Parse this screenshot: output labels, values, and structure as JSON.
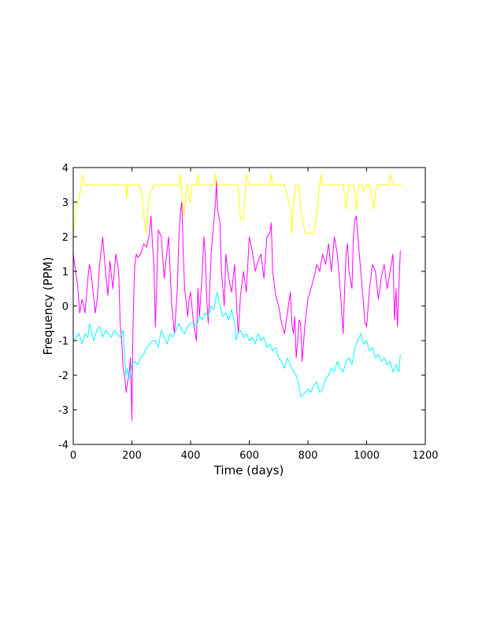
{
  "chart_data": {
    "type": "line",
    "title": "",
    "xlabel": "Time (days)",
    "ylabel": "Frequency (PPM)",
    "xlim": [
      0,
      1200
    ],
    "ylim": [
      -4,
      4
    ],
    "xticks": [
      0,
      200,
      400,
      600,
      800,
      1000,
      1200
    ],
    "yticks": [
      -4,
      -3,
      -2,
      -1,
      0,
      1,
      2,
      3,
      4
    ],
    "grid": false,
    "legend": "none",
    "series": [
      {
        "color": "#ffff00",
        "x": [
          0,
          10,
          22,
          32,
          38,
          45,
          60,
          100,
          180,
          182,
          186,
          190,
          195,
          210,
          225,
          235,
          242,
          248,
          252,
          260,
          275,
          300,
          330,
          350,
          360,
          365,
          368,
          372,
          378,
          382,
          386,
          390,
          395,
          400,
          405,
          410,
          420,
          425,
          430,
          440,
          460,
          480,
          485,
          490,
          495,
          500,
          510,
          520,
          530,
          540,
          550,
          560,
          565,
          570,
          580,
          585,
          590,
          600,
          610,
          620,
          630,
          640,
          660,
          670,
          675,
          680,
          685,
          690,
          700,
          720,
          730,
          740,
          745,
          750,
          760,
          770,
          775,
          780,
          790,
          800,
          810,
          820,
          830,
          840,
          845,
          850,
          860,
          870,
          880,
          900,
          920,
          925,
          930,
          940,
          950,
          955,
          960,
          965,
          970,
          975,
          980,
          985,
          990,
          1000,
          1010,
          1020,
          1025,
          1030,
          1035,
          1040,
          1060,
          1075,
          1080,
          1090,
          1120
        ],
        "y": [
          2.1,
          2.8,
          3.2,
          3.8,
          3.5,
          3.5,
          3.5,
          3.5,
          3.5,
          3.1,
          3.5,
          3.5,
          3.5,
          3.5,
          3.5,
          3.2,
          2.5,
          2.1,
          2.6,
          3.2,
          3.5,
          3.5,
          3.5,
          3.5,
          3.5,
          3.8,
          3.5,
          3.0,
          2.6,
          3.0,
          3.5,
          3.5,
          3.1,
          3.0,
          3.5,
          3.5,
          3.5,
          3.8,
          3.5,
          3.5,
          3.5,
          3.5,
          3.8,
          3.5,
          3.5,
          3.5,
          3.5,
          3.5,
          3.5,
          3.5,
          3.5,
          3.5,
          3.1,
          2.5,
          2.5,
          3.2,
          3.8,
          3.5,
          3.5,
          3.5,
          3.5,
          3.5,
          3.5,
          3.5,
          3.8,
          3.5,
          3.5,
          3.5,
          3.5,
          3.5,
          3.2,
          2.8,
          2.1,
          3.0,
          3.5,
          3.5,
          2.8,
          2.6,
          2.1,
          2.1,
          2.1,
          2.1,
          2.6,
          3.5,
          3.8,
          3.5,
          3.5,
          3.5,
          3.5,
          3.5,
          3.5,
          3.2,
          2.8,
          3.5,
          3.5,
          3.5,
          3.3,
          2.8,
          3.2,
          3.5,
          3.5,
          3.5,
          3.3,
          3.5,
          3.5,
          3.0,
          2.8,
          3.3,
          3.5,
          3.5,
          3.5,
          3.5,
          3.8,
          3.5,
          3.5
        ]
      },
      {
        "color": "#ff00ff",
        "x": [
          0,
          8,
          15,
          22,
          30,
          40,
          50,
          55,
          60,
          68,
          75,
          82,
          90,
          100,
          110,
          118,
          125,
          135,
          145,
          155,
          160,
          165,
          170,
          175,
          180,
          185,
          190,
          195,
          200,
          203,
          206,
          210,
          215,
          220,
          230,
          240,
          250,
          260,
          265,
          270,
          275,
          280,
          285,
          290,
          300,
          310,
          320,
          325,
          335,
          345,
          355,
          360,
          365,
          370,
          375,
          380,
          390,
          395,
          400,
          410,
          420,
          425,
          430,
          440,
          445,
          450,
          455,
          460,
          470,
          480,
          485,
          488,
          492,
          500,
          505,
          510,
          515,
          520,
          530,
          540,
          550,
          560,
          563,
          570,
          580,
          590,
          600,
          610,
          620,
          630,
          640,
          650,
          660,
          670,
          675,
          680,
          690,
          700,
          710,
          720,
          730,
          740,
          745,
          750,
          755,
          760,
          765,
          770,
          775,
          780,
          790,
          800,
          810,
          820,
          830,
          840,
          850,
          860,
          870,
          880,
          890,
          900,
          910,
          920,
          925,
          930,
          935,
          940,
          950,
          955,
          960,
          965,
          970,
          980,
          990,
          995,
          1000,
          1010,
          1020,
          1030,
          1040,
          1050,
          1060,
          1070,
          1080,
          1090,
          1095,
          1100,
          1105,
          1110,
          1115
        ],
        "y": [
          1.5,
          1.0,
          0.6,
          -0.2,
          0.2,
          -0.2,
          0.8,
          1.2,
          1.0,
          0.4,
          -0.2,
          0.2,
          1.2,
          2.0,
          1.0,
          0.3,
          1.3,
          0.5,
          1.5,
          1.0,
          -0.5,
          -1.0,
          -1.8,
          -2.0,
          -2.5,
          -2.2,
          -2.0,
          -1.5,
          -3.3,
          -1.0,
          0.2,
          1.2,
          1.5,
          1.4,
          1.5,
          1.8,
          1.7,
          2.1,
          2.6,
          1.8,
          1.2,
          -0.6,
          0.8,
          2.2,
          2.0,
          0.8,
          1.6,
          2.0,
          0.1,
          -0.8,
          0.5,
          2.0,
          2.7,
          3.0,
          1.5,
          0.5,
          -0.3,
          0.2,
          0.4,
          -0.5,
          -1.0,
          0.5,
          -0.3,
          1.0,
          2.0,
          1.5,
          0.2,
          -0.5,
          1.5,
          2.5,
          3.0,
          3.6,
          2.8,
          2.4,
          1.0,
          0.5,
          0.0,
          1.5,
          0.8,
          0.4,
          1.2,
          -0.5,
          -0.8,
          0.3,
          1.0,
          0.4,
          2.0,
          1.6,
          1.0,
          1.3,
          1.5,
          0.8,
          2.0,
          2.1,
          2.4,
          1.0,
          0.3,
          0.0,
          -0.5,
          -0.8,
          -0.2,
          0.4,
          -0.5,
          -0.8,
          -0.3,
          -1.5,
          -1.0,
          -0.4,
          -0.5,
          -1.6,
          -0.5,
          0.2,
          0.5,
          0.8,
          1.2,
          1.0,
          1.5,
          1.2,
          1.8,
          1.0,
          2.0,
          1.5,
          0.5,
          -0.8,
          0.5,
          1.5,
          1.8,
          1.0,
          0.5,
          2.0,
          2.5,
          2.6,
          2.0,
          1.0,
          0.0,
          -0.5,
          -0.6,
          0.5,
          1.2,
          1.0,
          0.2,
          0.8,
          1.2,
          0.5,
          1.0,
          1.5,
          -0.4,
          0.5,
          -0.6,
          0.5,
          1.6
        ]
      },
      {
        "color": "#00ffff",
        "x": [
          0,
          10,
          20,
          30,
          40,
          50,
          55,
          60,
          70,
          80,
          90,
          100,
          110,
          120,
          130,
          140,
          150,
          160,
          170,
          175,
          180,
          185,
          190,
          195,
          200,
          210,
          220,
          230,
          240,
          250,
          260,
          270,
          280,
          290,
          300,
          310,
          320,
          330,
          340,
          350,
          360,
          370,
          380,
          390,
          400,
          410,
          420,
          430,
          440,
          450,
          460,
          470,
          480,
          490,
          500,
          510,
          520,
          530,
          540,
          550,
          555,
          560,
          570,
          580,
          590,
          600,
          610,
          620,
          630,
          640,
          650,
          660,
          670,
          680,
          690,
          700,
          710,
          720,
          730,
          740,
          750,
          760,
          770,
          775,
          780,
          790,
          800,
          810,
          820,
          830,
          840,
          850,
          860,
          870,
          880,
          890,
          900,
          910,
          920,
          930,
          940,
          950,
          960,
          970,
          980,
          990,
          1000,
          1010,
          1020,
          1030,
          1040,
          1050,
          1060,
          1070,
          1080,
          1090,
          1100,
          1110,
          1115
        ],
        "y": [
          -1.0,
          -0.9,
          -0.8,
          -1.1,
          -0.8,
          -0.9,
          -0.5,
          -0.7,
          -1.0,
          -0.7,
          -0.6,
          -0.9,
          -0.7,
          -0.8,
          -0.9,
          -0.7,
          -0.8,
          -0.9,
          -0.7,
          -1.5,
          -2.0,
          -1.8,
          -2.1,
          -2.0,
          -1.7,
          -1.6,
          -1.7,
          -1.5,
          -1.4,
          -1.2,
          -1.1,
          -1.0,
          -1.0,
          -1.2,
          -0.7,
          -0.9,
          -1.1,
          -0.8,
          -0.9,
          -0.7,
          -0.5,
          -0.7,
          -0.8,
          -0.6,
          -0.5,
          -0.5,
          -0.6,
          -0.3,
          -0.4,
          -0.2,
          -0.3,
          0.0,
          -0.1,
          0.4,
          0.0,
          -0.3,
          -0.2,
          -0.4,
          -0.1,
          -0.5,
          -1.0,
          -0.8,
          -0.7,
          -0.9,
          -0.8,
          -1.0,
          -0.9,
          -1.1,
          -0.8,
          -1.0,
          -0.9,
          -1.2,
          -1.1,
          -1.3,
          -1.2,
          -1.5,
          -1.6,
          -1.8,
          -1.5,
          -1.7,
          -1.9,
          -2.0,
          -2.3,
          -2.6,
          -2.6,
          -2.5,
          -2.4,
          -2.5,
          -2.3,
          -2.2,
          -2.5,
          -2.4,
          -2.1,
          -2.0,
          -1.8,
          -1.9,
          -1.6,
          -1.8,
          -1.9,
          -1.6,
          -1.5,
          -1.7,
          -1.2,
          -1.0,
          -0.8,
          -1.1,
          -1.0,
          -1.3,
          -1.2,
          -1.5,
          -1.4,
          -1.6,
          -1.5,
          -1.7,
          -1.6,
          -1.9,
          -1.7,
          -1.9,
          -1.4
        ]
      }
    ]
  }
}
